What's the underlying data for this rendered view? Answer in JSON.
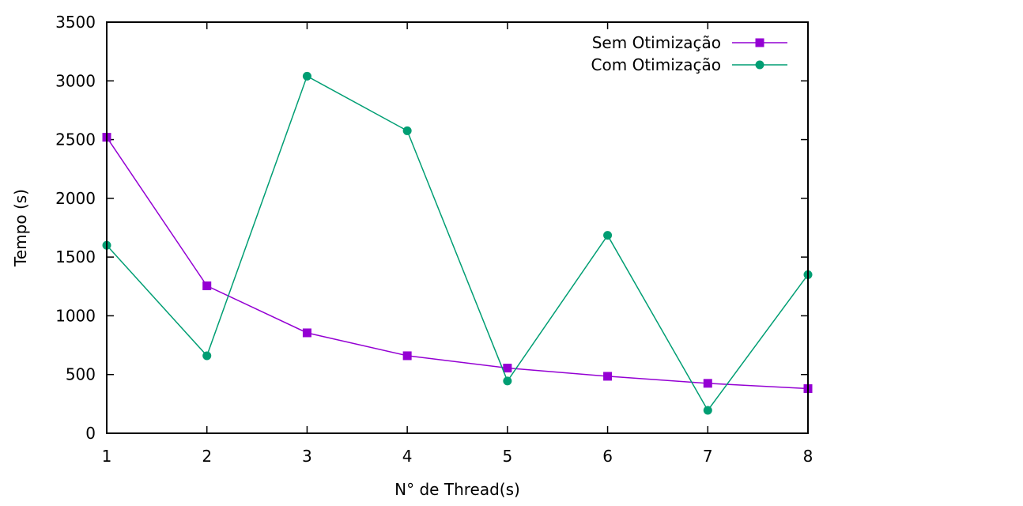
{
  "chart_data": {
    "type": "line",
    "title": "",
    "xlabel": "N° de Thread(s)",
    "ylabel": "Tempo (s)",
    "x": [
      1,
      2,
      3,
      4,
      5,
      6,
      7,
      8
    ],
    "xlim": [
      1,
      8
    ],
    "ylim": [
      0,
      3500
    ],
    "xticks": [
      "1",
      "2",
      "3",
      "4",
      "5",
      "6",
      "7",
      "8"
    ],
    "yticks": [
      "0",
      "500",
      "1000",
      "1500",
      "2000",
      "2500",
      "3000",
      "3500"
    ],
    "grid": false,
    "legend_position": "top-right",
    "series": [
      {
        "name": "Sem Otimização",
        "color": "#9400d3",
        "marker": "square",
        "values": [
          2520,
          1255,
          855,
          660,
          555,
          485,
          425,
          380
        ]
      },
      {
        "name": "Com Otimização",
        "color": "#009e73",
        "marker": "circle",
        "values": [
          1600,
          660,
          3040,
          2575,
          445,
          1685,
          195,
          1350
        ]
      }
    ]
  }
}
